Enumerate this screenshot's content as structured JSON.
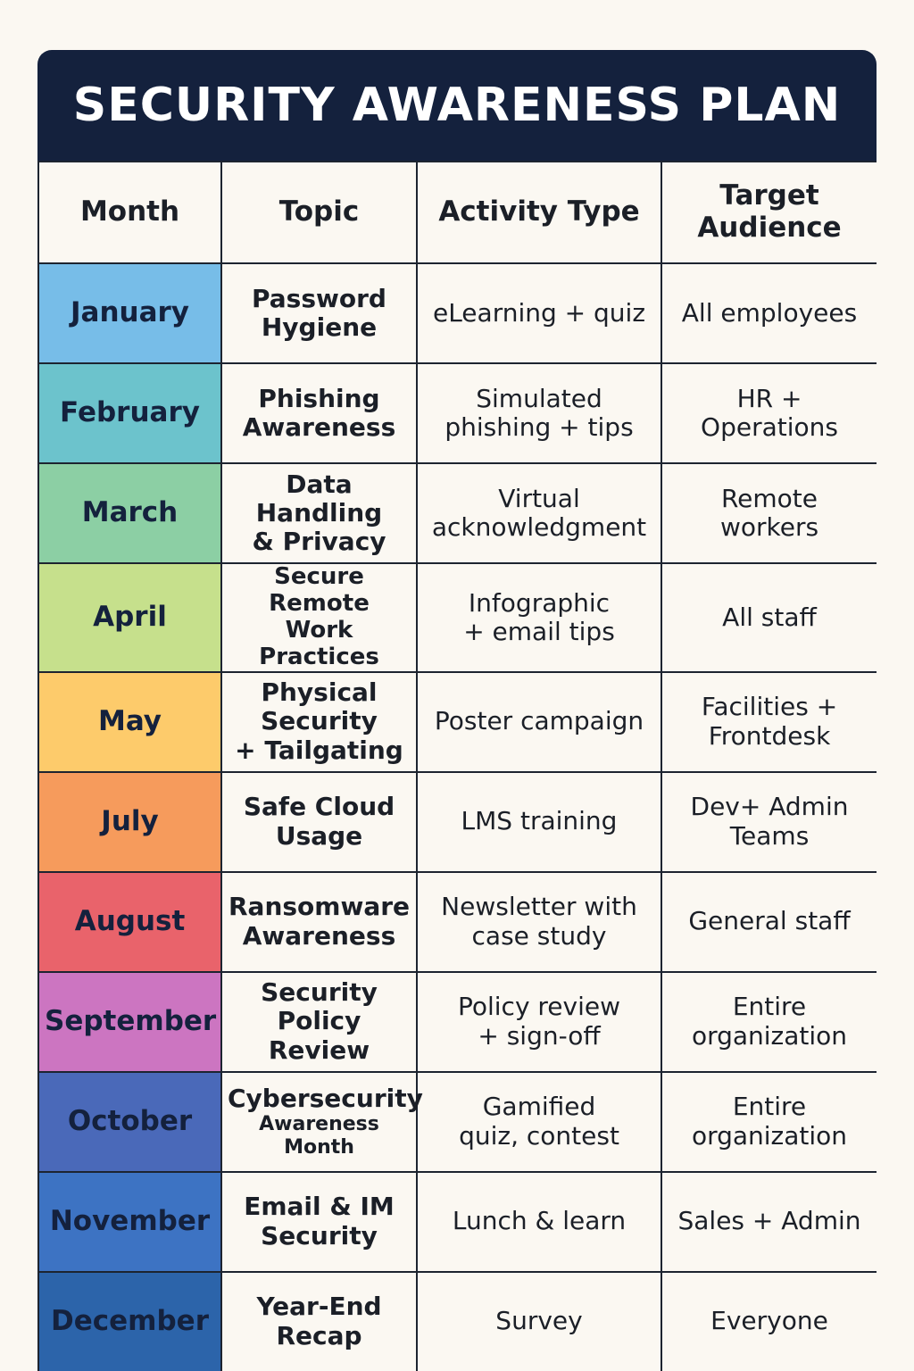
{
  "title": "SECURITY AWARENESS PLAN",
  "headers": {
    "month": "Month",
    "topic": "Topic",
    "activity": "Activity Type",
    "audience": "Target\nAudience"
  },
  "colors": {
    "title_bg": "#14213d",
    "january": "#77bde8",
    "february": "#6cc3cc",
    "march": "#8ccfa4",
    "april": "#c6e08c",
    "may": "#fdcb6b",
    "july": "#f69b5c",
    "august": "#e9636b",
    "september": "#cc75c1",
    "october": "#4a69b9",
    "november": "#3d73c3",
    "december": "#2c64aa"
  },
  "rows": [
    {
      "month": "January",
      "topic": "Password\nHygiene",
      "activity": "eLearning + quiz",
      "audience": "All employees"
    },
    {
      "month": "February",
      "topic": "Phishing\nAwareness",
      "activity": "Simulated\nphishing + tips",
      "audience": "HR +\nOperations"
    },
    {
      "month": "March",
      "topic": "Data Handling\n& Privacy",
      "activity": "Virtual\nacknowledgment",
      "audience": "Remote\nworkers"
    },
    {
      "month": "April",
      "topic": "Secure Remote\nWork Practices",
      "activity": "Infographic\n+ email tips",
      "audience": "All staff"
    },
    {
      "month": "May",
      "topic": "Physical\nSecurity\n+ Tailgating",
      "activity": "Poster campaign",
      "audience": "Facilities +\nFrontdesk"
    },
    {
      "month": "July",
      "topic": "Safe Cloud\nUsage",
      "activity": "LMS training",
      "audience": "Dev+ Admin\nTeams"
    },
    {
      "month": "August",
      "topic": "Ransomware\nAwareness",
      "activity": "Newsletter with\ncase study",
      "audience": "General staff"
    },
    {
      "month": "September",
      "topic": "Security\nPolicy Review",
      "activity": "Policy review\n+ sign-off",
      "audience": "Entire\norganization"
    },
    {
      "month": "October",
      "topic": "Cybersecurity",
      "topic_sub": "Awareness Month",
      "activity": "Gamified\nquiz, contest",
      "audience": "Entire\norganization"
    },
    {
      "month": "November",
      "topic": "Email & IM\nSecurity",
      "activity": "Lunch & learn",
      "audience": "Sales + Admin"
    },
    {
      "month": "December",
      "topic": "Year-End\nRecap",
      "activity": "Survey",
      "audience": "Everyone"
    }
  ]
}
